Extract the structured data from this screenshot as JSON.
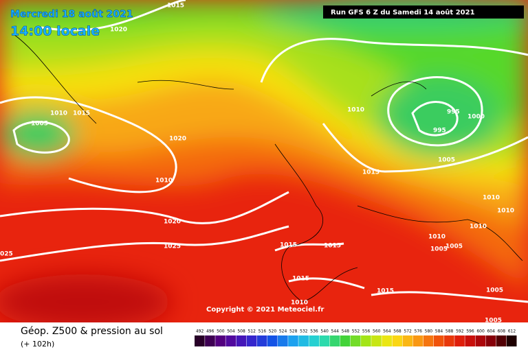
{
  "header": {
    "date": "Mercredi 18 août 2021",
    "time": "14:00 locale",
    "run": "Run GFS 6 Z du Samedi 14 août 2021"
  },
  "copyright": "Copyright © 2021 Meteociel.fr",
  "footer": {
    "title": "Géop. Z500 & pression au sol",
    "lead": "(+ 102h)"
  },
  "scale": [
    492,
    496,
    500,
    504,
    508,
    512,
    516,
    520,
    524,
    528,
    532,
    536,
    540,
    544,
    548,
    552,
    556,
    560,
    564,
    568,
    572,
    576,
    580,
    584,
    588,
    592,
    596,
    600,
    604,
    608,
    612
  ],
  "isobar_labels": [
    "1020",
    "1015",
    "1010",
    "1015",
    "1005",
    "1020",
    "1010",
    "1020",
    "1025",
    "025",
    "1010",
    "995",
    "1000",
    "995",
    "1005",
    "1015",
    "1010",
    "1010",
    "1010",
    "1010",
    "1005",
    "1005",
    "1015",
    "1015",
    "1015",
    "1015",
    "1010",
    "1005",
    "1005"
  ]
}
